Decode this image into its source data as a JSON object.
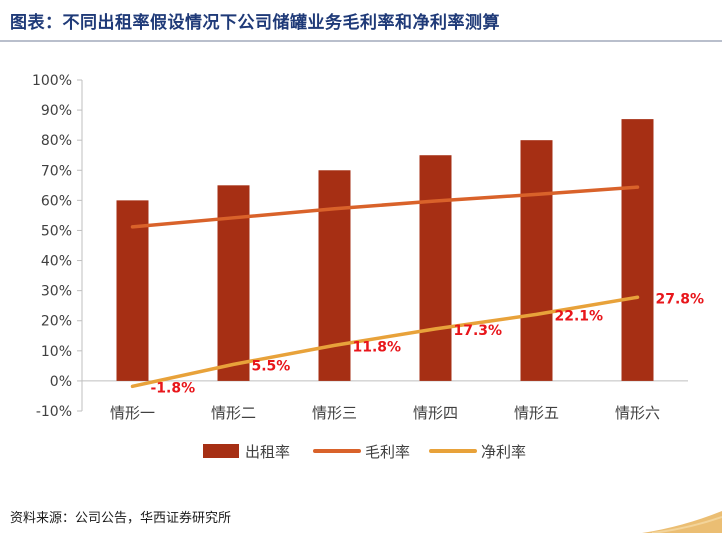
{
  "title": "图表：不同出租率假设情况下公司储罐业务毛利率和净利率测算",
  "source": "资料来源：公司公告，华西证券研究所",
  "chart_data": {
    "type": "bar",
    "categories": [
      "情形一",
      "情形二",
      "情形三",
      "情形四",
      "情形五",
      "情形六"
    ],
    "series": [
      {
        "name": "出租率",
        "kind": "bar",
        "color": "#a62f14",
        "values": [
          60,
          65,
          70,
          75,
          80,
          87
        ]
      },
      {
        "name": "毛利率",
        "kind": "line",
        "color": "#d9622a",
        "values": [
          51.2,
          54.2,
          57.2,
          59.8,
          62,
          64.4
        ]
      },
      {
        "name": "净利率",
        "kind": "line",
        "color": "#e8a23a",
        "values": [
          -1.8,
          5.5,
          11.8,
          17.3,
          22.1,
          27.8
        ],
        "data_labels": [
          "-1.8%",
          "5.5%",
          "11.8%",
          "17.3%",
          "22.1%",
          "27.8%"
        ],
        "label_color": "#e8161b"
      }
    ],
    "ylim": [
      -10,
      100
    ],
    "yticks": [
      -10,
      0,
      10,
      20,
      30,
      40,
      50,
      60,
      70,
      80,
      90,
      100
    ],
    "ytick_labels": [
      "-10%",
      "0%",
      "10%",
      "20%",
      "30%",
      "40%",
      "50%",
      "60%",
      "70%",
      "80%",
      "90%",
      "100%"
    ],
    "grid": false,
    "legend_position": "bottom"
  }
}
